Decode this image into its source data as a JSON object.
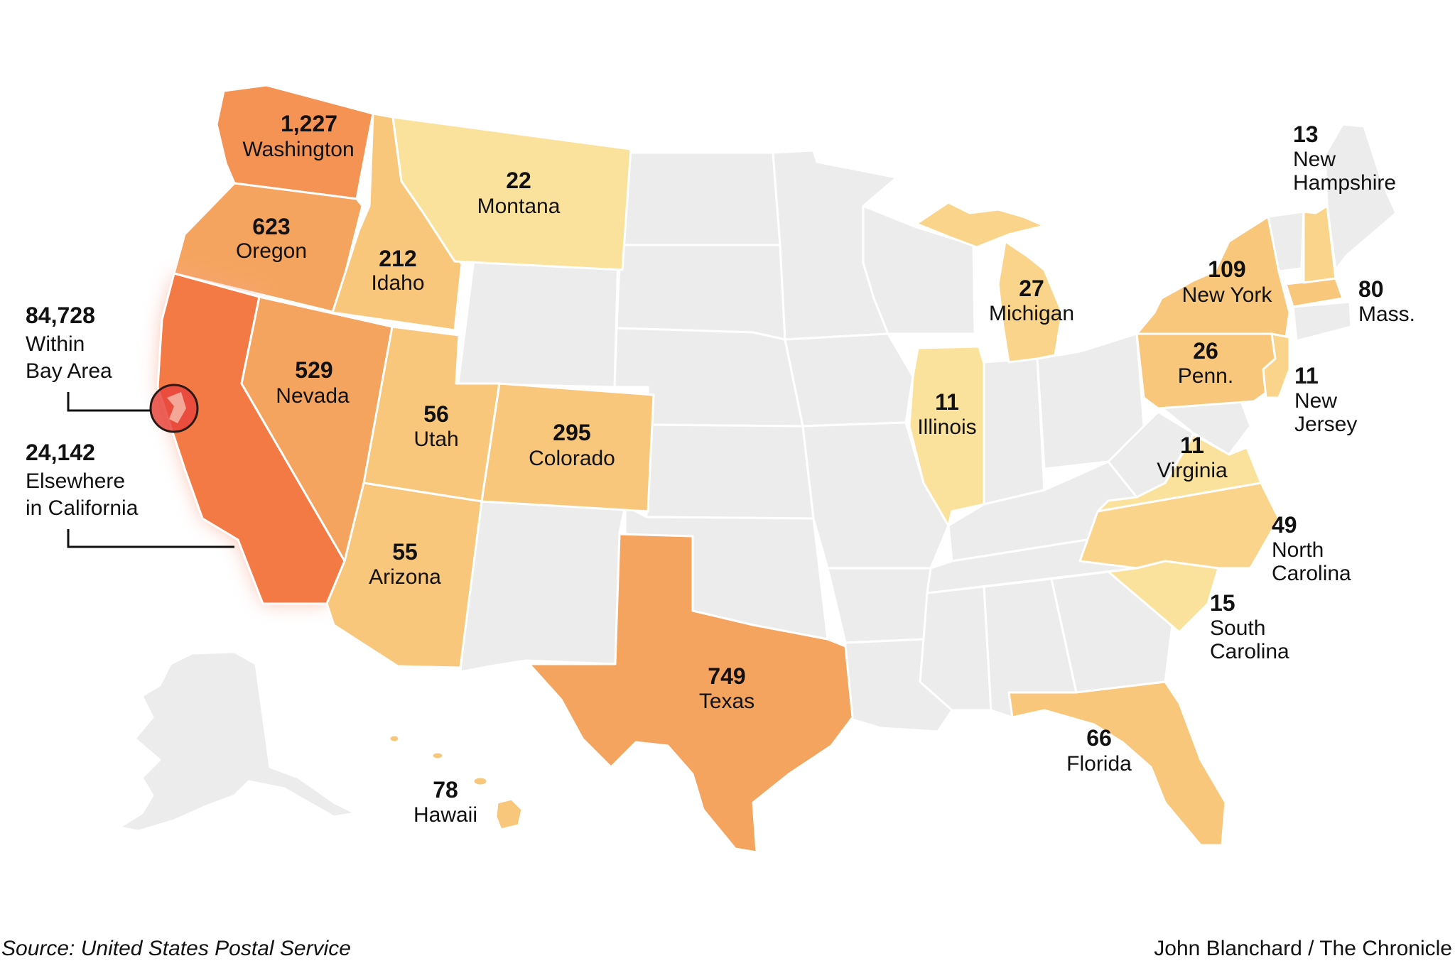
{
  "colors": {
    "background": "#ffffff",
    "state_nodata": "#ececec",
    "state_border": "#ffffff",
    "california": "#f47a45",
    "washington": "#f59354",
    "mid": "#f5a45f",
    "light": "#f8c77b",
    "lighter": "#fad48a",
    "lightest": "#fbe29c",
    "bay_circle": "#e8453c"
  },
  "california": {
    "bay_area": {
      "value": "84,728",
      "line1": "Within",
      "line2": "Bay Area"
    },
    "elsewhere": {
      "value": "24,142",
      "line1": "Elsewhere",
      "line2": "in California"
    }
  },
  "states": {
    "washington": {
      "value": "1,227",
      "name": "Washington"
    },
    "oregon": {
      "value": "623",
      "name": "Oregon"
    },
    "idaho": {
      "value": "212",
      "name": "Idaho"
    },
    "montana": {
      "value": "22",
      "name": "Montana"
    },
    "nevada": {
      "value": "529",
      "name": "Nevada"
    },
    "utah": {
      "value": "56",
      "name": "Utah"
    },
    "colorado": {
      "value": "295",
      "name": "Colorado"
    },
    "arizona": {
      "value": "55",
      "name": "Arizona"
    },
    "texas": {
      "value": "749",
      "name": "Texas"
    },
    "hawaii": {
      "value": "78",
      "name": "Hawaii"
    },
    "illinois": {
      "value": "11",
      "name": "Illinois"
    },
    "michigan": {
      "value": "27",
      "name": "Michigan"
    },
    "new_york": {
      "value": "109",
      "name": "New York"
    },
    "pennsylvania": {
      "value": "26",
      "name": "Penn."
    },
    "massachusetts": {
      "value": "80",
      "name": "Mass."
    },
    "new_hampshire": {
      "value": "13",
      "name1": "New",
      "name2": "Hampshire"
    },
    "new_jersey": {
      "value": "11",
      "name1": "New",
      "name2": "Jersey"
    },
    "virginia": {
      "value": "11",
      "name": "Virginia"
    },
    "north_carolina": {
      "value": "49",
      "name1": "North",
      "name2": "Carolina"
    },
    "south_carolina": {
      "value": "15",
      "name1": "South",
      "name2": "Carolina"
    },
    "florida": {
      "value": "66",
      "name": "Florida"
    }
  },
  "footer": {
    "source": "Source: United States Postal Service",
    "credit": "John Blanchard / The Chronicle"
  }
}
